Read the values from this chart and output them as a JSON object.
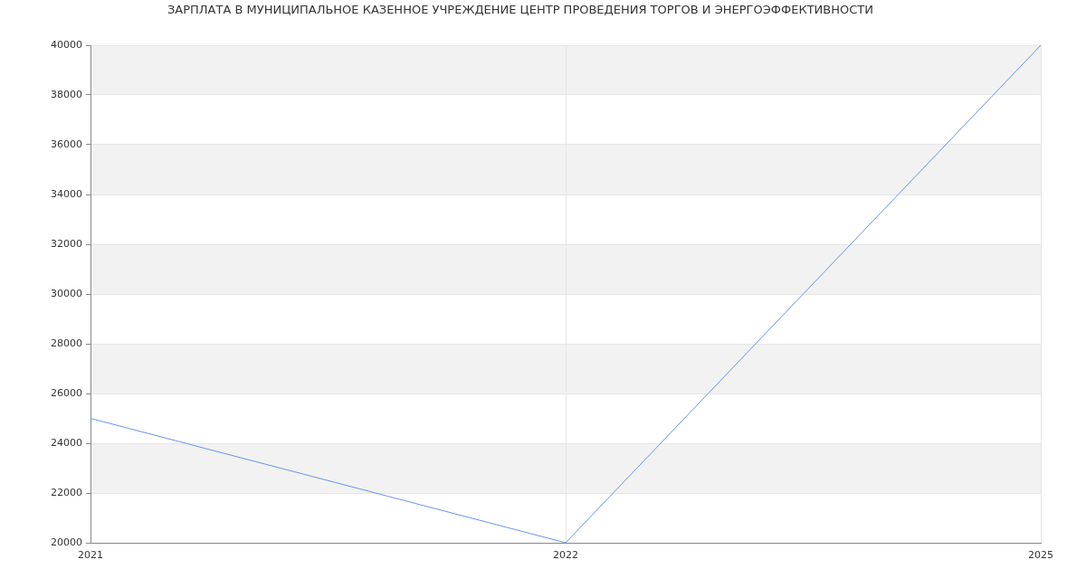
{
  "chart_data": {
    "type": "line",
    "title": "ЗАРПЛАТА В МУНИЦИПАЛЬНОЕ КАЗЕННОЕ УЧРЕЖДЕНИЕ ЦЕНТР ПРОВЕДЕНИЯ ТОРГОВ И ЭНЕРГОЭФФЕКТИВНОСТИ",
    "categories": [
      "2021",
      "2022",
      "2025"
    ],
    "values": [
      25000,
      20000,
      40000
    ],
    "color": "#6495ed",
    "ylim": [
      20000,
      40000
    ],
    "yticks": [
      20000,
      22000,
      24000,
      26000,
      28000,
      30000,
      32000,
      34000,
      36000,
      38000,
      40000
    ],
    "grid": true,
    "marker": "none",
    "line_style": "solid",
    "bands": [
      {
        "axis": "y",
        "from": 22000,
        "to": 24000,
        "color": "#f2f2f2"
      },
      {
        "axis": "y",
        "from": 26000,
        "to": 28000,
        "color": "#f2f2f2"
      },
      {
        "axis": "y",
        "from": 30000,
        "to": 32000,
        "color": "#f2f2f2"
      },
      {
        "axis": "y",
        "from": 34000,
        "to": 36000,
        "color": "#f2f2f2"
      },
      {
        "axis": "y",
        "from": 38000,
        "to": 40000,
        "color": "#f2f2f2"
      }
    ]
  }
}
